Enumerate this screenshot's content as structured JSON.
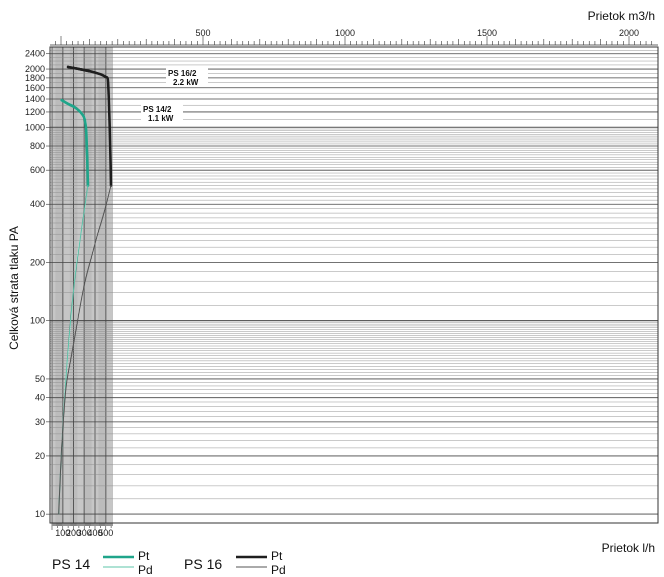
{
  "chart_data": {
    "type": "line",
    "x_axis_bottom": {
      "label": "Prietok l/h",
      "range": [
        0,
        550
      ],
      "ticks": [
        100,
        200,
        300,
        400,
        500
      ]
    },
    "x_axis_top": {
      "label": "Prietok m3/h",
      "range": [
        0,
        2000
      ],
      "ticks": [
        500,
        1000,
        1500,
        2000
      ]
    },
    "y_axis": {
      "label": "Celková strata tlaku PA",
      "scale": "log",
      "range": [
        9,
        2600
      ],
      "ticks": [
        10,
        20,
        30,
        40,
        50,
        100,
        200,
        400,
        600,
        800,
        1000,
        1200,
        1400,
        1600,
        1800,
        2000,
        2400
      ]
    },
    "annotations": [
      {
        "line1": "PS 16/2",
        "line2": "2.2 kW"
      },
      {
        "line1": "PS 14/2",
        "line2": "1.1 kW"
      }
    ],
    "legend": {
      "placement": "bottom-left",
      "groups": [
        {
          "name": "PS 14",
          "pt_label": "Pt",
          "pd_label": "Pd",
          "color": "#1fa58a"
        },
        {
          "name": "PS 16",
          "pt_label": "Pt",
          "pd_label": "Pd",
          "color": "#1e1e1e"
        }
      ]
    },
    "series": [
      {
        "model": "PS 14",
        "kind": "Pt",
        "color": "#1fa58a",
        "width": 2.6,
        "x": [
          90,
          150,
          200,
          250,
          280,
          300,
          315,
          322,
          327,
          331,
          334
        ],
        "y": [
          1380,
          1320,
          1280,
          1220,
          1170,
          1120,
          1000,
          850,
          700,
          580,
          500
        ]
      },
      {
        "model": "PS 14",
        "kind": "Pd",
        "color": "#5cc4aa",
        "width": 1.0,
        "x": [
          62,
          75,
          90,
          110,
          140,
          180,
          220,
          260,
          300,
          334
        ],
        "y": [
          10,
          15,
          22,
          35,
          60,
          110,
          180,
          260,
          370,
          500
        ]
      },
      {
        "model": "PS 16",
        "kind": "Pt",
        "color": "#1e1e1e",
        "width": 2.6,
        "x": [
          150,
          250,
          350,
          450,
          500,
          515,
          522,
          530,
          538,
          545,
          549
        ],
        "y": [
          2050,
          2000,
          1950,
          1880,
          1820,
          1800,
          1700,
          1300,
          950,
          650,
          500
        ]
      },
      {
        "model": "PS 16",
        "kind": "Pd",
        "color": "#555555",
        "width": 1.0,
        "x": [
          62,
          75,
          95,
          130,
          180,
          250,
          320,
          400,
          470,
          549
        ],
        "y": [
          10,
          15,
          25,
          45,
          65,
          110,
          170,
          250,
          340,
          500
        ]
      }
    ]
  }
}
